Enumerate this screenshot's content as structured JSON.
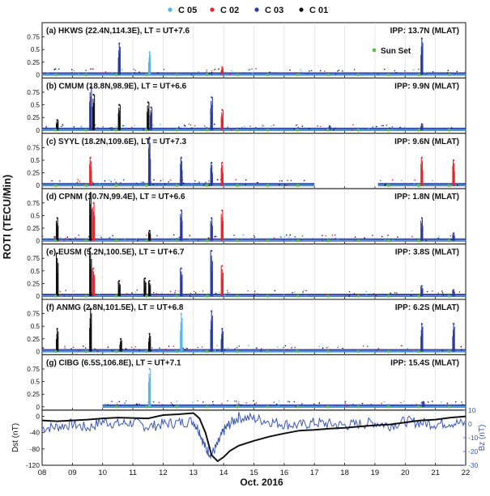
{
  "chart_data": {
    "type": "scatter",
    "legend": {
      "placement": "top",
      "entries": [
        {
          "label": "C 05",
          "color": "#4fb8ea"
        },
        {
          "label": "C 02",
          "color": "#e8262b"
        },
        {
          "label": "C 03",
          "color": "#2b3a9e"
        },
        {
          "label": "C 01",
          "color": "#111111"
        }
      ],
      "sunset_label": "Sun Set",
      "sunset_color": "#56c43c"
    },
    "ylabel": "ROTI (TECU/Min)",
    "xlabel": "Oct. 2016",
    "xlim": [
      8,
      22
    ],
    "x_ticks": [
      "08",
      "09",
      "10",
      "11",
      "12",
      "13",
      "14",
      "15",
      "16",
      "17",
      "18",
      "19",
      "20",
      "21",
      "22"
    ],
    "roti_ylim": [
      0,
      1
    ],
    "roti_yticks": [
      "0",
      "0.25",
      "0.5",
      "0.75"
    ],
    "grid": "vertical-daily",
    "panels": [
      {
        "label": "(a) HKWS (22.4N,114.3E), LT = UT+7.6",
        "ipp": "IPP: 13.7N (MLAT)",
        "data_start": 8.0,
        "data_end": 22.0,
        "spikes": [
          {
            "x": 10.55,
            "h": 0.62,
            "c": "#2b3a9e"
          },
          {
            "x": 11.55,
            "h": 0.45,
            "c": "#4fb8ea"
          },
          {
            "x": 13.95,
            "h": 0.15,
            "c": "#e8262b"
          },
          {
            "x": 20.55,
            "h": 0.72,
            "c": "#2b3a9e"
          }
        ]
      },
      {
        "label": "(b) CMUM (18.8N,98.9E), LT = UT+6.6",
        "ipp": "IPP: 9.9N (MLAT)",
        "data_start": 8.0,
        "data_end": 22.0,
        "spikes": [
          {
            "x": 8.5,
            "h": 0.2,
            "c": "#111111"
          },
          {
            "x": 9.6,
            "h": 0.85,
            "c": "#2b3a9e"
          },
          {
            "x": 9.7,
            "h": 0.7,
            "c": "#111111"
          },
          {
            "x": 10.55,
            "h": 0.5,
            "c": "#111111"
          },
          {
            "x": 11.5,
            "h": 0.55,
            "c": "#111111"
          },
          {
            "x": 11.6,
            "h": 0.45,
            "c": "#2b3a9e"
          },
          {
            "x": 13.6,
            "h": 0.65,
            "c": "#2b3a9e"
          },
          {
            "x": 13.95,
            "h": 0.4,
            "c": "#e8262b"
          },
          {
            "x": 17.5,
            "h": 0.08,
            "c": "#2b3a9e"
          },
          {
            "x": 20.55,
            "h": 0.12,
            "c": "#2b3a9e"
          }
        ]
      },
      {
        "label": "(c) SYYL (18.2N,109.6E), LT = UT+7.3",
        "ipp": "IPP: 9.6N (MLAT)",
        "data_start": 8.0,
        "data_end": 22.0,
        "gap": [
          17.0,
          19.1
        ],
        "spikes": [
          {
            "x": 9.6,
            "h": 0.55,
            "c": "#e8262b"
          },
          {
            "x": 11.55,
            "h": 0.95,
            "c": "#2b3a9e"
          },
          {
            "x": 12.6,
            "h": 0.55,
            "c": "#2b3a9e"
          },
          {
            "x": 13.6,
            "h": 0.45,
            "c": "#2b3a9e"
          },
          {
            "x": 13.95,
            "h": 0.45,
            "c": "#e8262b"
          },
          {
            "x": 20.55,
            "h": 0.55,
            "c": "#e8262b"
          },
          {
            "x": 21.6,
            "h": 0.5,
            "c": "#e8262b"
          }
        ]
      },
      {
        "label": "(d) CPNM (10.7N,99.4E), LT = UT+6.6",
        "ipp": "IPP: 1.8N (MLAT)",
        "data_start": 8.0,
        "data_end": 22.0,
        "spikes": [
          {
            "x": 8.5,
            "h": 0.45,
            "c": "#111111"
          },
          {
            "x": 9.6,
            "h": 0.95,
            "c": "#111111"
          },
          {
            "x": 9.7,
            "h": 0.75,
            "c": "#e8262b"
          },
          {
            "x": 11.55,
            "h": 0.2,
            "c": "#111111"
          },
          {
            "x": 12.6,
            "h": 0.6,
            "c": "#2b3a9e"
          },
          {
            "x": 13.6,
            "h": 0.45,
            "c": "#2b3a9e"
          },
          {
            "x": 13.95,
            "h": 0.6,
            "c": "#e8262b"
          },
          {
            "x": 20.55,
            "h": 0.45,
            "c": "#2b3a9e"
          },
          {
            "x": 21.6,
            "h": 0.15,
            "c": "#2b3a9e"
          }
        ]
      },
      {
        "label": "(e) EUSM (5.2N,100.5E), LT = UT+6.7",
        "ipp": "IPP: 3.8S (MLAT)",
        "data_start": 8.0,
        "data_end": 22.0,
        "spikes": [
          {
            "x": 8.5,
            "h": 0.85,
            "c": "#111111"
          },
          {
            "x": 9.6,
            "h": 0.95,
            "c": "#111111"
          },
          {
            "x": 9.7,
            "h": 0.55,
            "c": "#e8262b"
          },
          {
            "x": 10.55,
            "h": 0.3,
            "c": "#111111"
          },
          {
            "x": 11.4,
            "h": 0.35,
            "c": "#111111"
          },
          {
            "x": 11.55,
            "h": 0.3,
            "c": "#111111"
          },
          {
            "x": 12.6,
            "h": 0.55,
            "c": "#2b3a9e"
          },
          {
            "x": 13.6,
            "h": 0.9,
            "c": "#2b3a9e"
          },
          {
            "x": 13.95,
            "h": 0.6,
            "c": "#e8262b"
          },
          {
            "x": 20.55,
            "h": 0.2,
            "c": "#2b3a9e"
          },
          {
            "x": 21.6,
            "h": 0.12,
            "c": "#2b3a9e"
          }
        ]
      },
      {
        "label": "(f) ANMG (2.8N,101.5E), LT = UT+6.8",
        "ipp": "IPP: 6.2S (MLAT)",
        "data_start": 8.0,
        "data_end": 22.0,
        "spikes": [
          {
            "x": 8.5,
            "h": 0.45,
            "c": "#111111"
          },
          {
            "x": 9.6,
            "h": 0.85,
            "c": "#111111"
          },
          {
            "x": 10.6,
            "h": 0.25,
            "c": "#111111"
          },
          {
            "x": 11.55,
            "h": 0.35,
            "c": "#111111"
          },
          {
            "x": 12.6,
            "h": 0.75,
            "c": "#4fb8ea"
          },
          {
            "x": 13.6,
            "h": 0.8,
            "c": "#2b3a9e"
          },
          {
            "x": 13.95,
            "h": 0.45,
            "c": "#2b3a9e"
          },
          {
            "x": 20.55,
            "h": 0.55,
            "c": "#2b3a9e"
          },
          {
            "x": 21.6,
            "h": 0.55,
            "c": "#2b3a9e"
          }
        ]
      },
      {
        "label": "(g) CIBG (6.5S,106.8E), LT = UT+7.1",
        "ipp": "IPP: 15.4S (MLAT)",
        "data_start": 10.0,
        "data_end": 22.0,
        "spikes": [
          {
            "x": 11.55,
            "h": 0.75,
            "c": "#4fb8ea"
          },
          {
            "x": 20.6,
            "h": 0.1,
            "c": "#2b3a9e"
          }
        ]
      }
    ],
    "sunset_times": [
      8.45,
      9.45,
      10.45,
      11.45,
      12.45,
      13.45,
      14.45,
      15.45,
      16.45,
      17.45,
      18.45,
      19.45,
      20.45,
      21.45
    ],
    "dst_panel": {
      "ylabel": "Dst (nT)",
      "yticks": [
        "0",
        "-40",
        "-80",
        "-120"
      ],
      "ylim": [
        -120,
        15
      ],
      "color": "#111111",
      "x": [
        8,
        8.5,
        9,
        9.5,
        10,
        10.5,
        11,
        11.5,
        12,
        12.5,
        13,
        13.2,
        13.4,
        13.6,
        13.8,
        14,
        14.2,
        14.5,
        15,
        15.5,
        16,
        16.5,
        17,
        17.5,
        18,
        18.5,
        19,
        19.5,
        20,
        20.5,
        21,
        21.5,
        22
      ],
      "values": [
        -10,
        -12,
        -10,
        -8,
        -5,
        -3,
        -4,
        -5,
        3,
        5,
        8,
        -5,
        -40,
        -95,
        -110,
        -100,
        -85,
        -72,
        -60,
        -50,
        -42,
        -35,
        -33,
        -30,
        -28,
        -25,
        -22,
        -20,
        -15,
        -10,
        -8,
        -3,
        0
      ],
      "bz_ylabel": "Bz (nT)",
      "bz_yticks": [
        "10",
        "0",
        "-10",
        "-20",
        "-30"
      ],
      "bz_ylim": [
        -30,
        10
      ],
      "bz_color": "#3a56b8",
      "bz_x": [
        8,
        8.5,
        9,
        9.5,
        10,
        10.5,
        11,
        11.5,
        12,
        12.5,
        13,
        13.2,
        13.4,
        13.6,
        13.8,
        14,
        14.2,
        14.5,
        15,
        15.5,
        16,
        16.5,
        17,
        17.5,
        18,
        18.5,
        19,
        19.5,
        20,
        20.5,
        21,
        21.5,
        22
      ],
      "bz_values": [
        -3,
        -2,
        0,
        -3,
        2,
        0,
        1,
        -2,
        0,
        1,
        2,
        -5,
        -18,
        -22,
        -15,
        -5,
        0,
        5,
        4,
        2,
        0,
        -1,
        1,
        0,
        -1,
        0,
        1,
        -1,
        2,
        1,
        0,
        1,
        0
      ]
    }
  }
}
